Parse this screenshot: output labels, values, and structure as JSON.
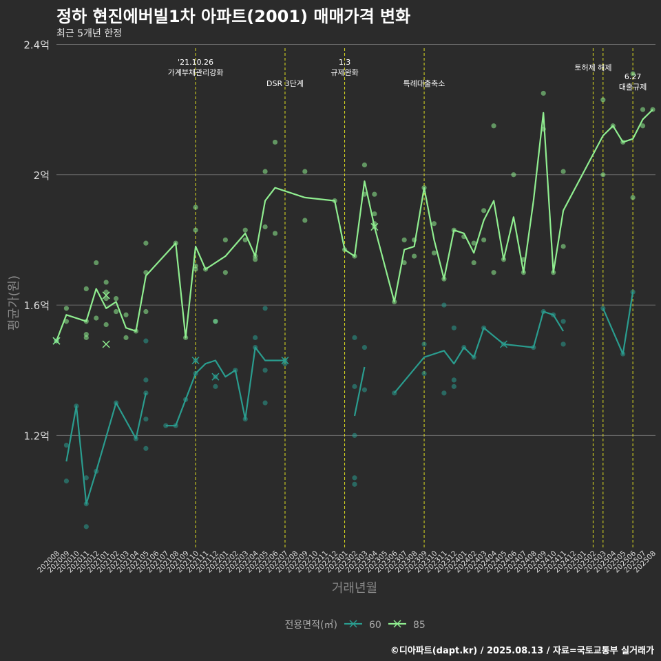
{
  "title": "정하 현진에버빌1차 아파트(2001) 매매가격 변화",
  "subtitle": "최근 5개년 한정",
  "caption": "©디아파트(dapt.kr) / 2025.08.13 / 자료=국토교통부 실거래가",
  "colors": {
    "background": "#2b2b2b",
    "grid": "#6b6b6b",
    "series60": "#2a9d8f",
    "series85": "#90ee90",
    "policy": "#e0e020",
    "text": "#dddddd"
  },
  "chart_data": {
    "type": "line",
    "xlabel": "거래년월",
    "ylabel": "평균가(원)",
    "ylim": [
      0.85,
      2.42
    ],
    "y_ticks": [
      {
        "value": 1.2,
        "label": "1.2억"
      },
      {
        "value": 1.6,
        "label": "1.6억"
      },
      {
        "value": 2.0,
        "label": "2억"
      },
      {
        "value": 2.4,
        "label": "2.4억"
      }
    ],
    "categories": [
      "202008",
      "202009",
      "202010",
      "202011",
      "202012",
      "202101",
      "202102",
      "202103",
      "202104",
      "202105",
      "202106",
      "202107",
      "202108",
      "202109",
      "202110",
      "202111",
      "202112",
      "202201",
      "202202",
      "202203",
      "202204",
      "202205",
      "202206",
      "202207",
      "202208",
      "202209",
      "202210",
      "202211",
      "202212",
      "202301",
      "202302",
      "202303",
      "202304",
      "202305",
      "202306",
      "202307",
      "202308",
      "202309",
      "202310",
      "202311",
      "202312",
      "202401",
      "202402",
      "202403",
      "202404",
      "202405",
      "202406",
      "202407",
      "202408",
      "202409",
      "202410",
      "202411",
      "202412",
      "202501",
      "202502",
      "202503",
      "202504",
      "202505",
      "202506",
      "202507",
      "202508"
    ],
    "grid": true,
    "legend": {
      "title": "전용면적(㎡)",
      "position": "bottom",
      "entries": [
        "60",
        "85"
      ]
    },
    "policy_lines": [
      {
        "x": "202110",
        "label": "'21.10.26\n가계부채관리강화",
        "row": 0
      },
      {
        "x": "202207",
        "label": "DSR 3단계",
        "row": 1
      },
      {
        "x": "202301",
        "label": "1.3\n규제완화",
        "row": 0
      },
      {
        "x": "202309",
        "label": "특례대출축소",
        "row": 1
      },
      {
        "x": "202502",
        "label": "토허제 해제",
        "row": 0
      },
      {
        "x": "202503",
        "label": "",
        "row": 0
      },
      {
        "x": "202506",
        "label": "6.27\n대출규제",
        "row": 2
      }
    ],
    "series": [
      {
        "name": "60",
        "line": [
          [
            [
              "202009",
              1.12
            ],
            [
              "202010",
              1.29
            ],
            [
              "202011",
              0.99
            ],
            [
              "202012",
              1.09
            ],
            [
              "202102",
              1.3
            ],
            [
              "202104",
              1.19
            ],
            [
              "202105",
              1.33
            ]
          ],
          [
            [
              "202107",
              1.23
            ],
            [
              "202108",
              1.23
            ],
            [
              "202109",
              1.31
            ],
            [
              "202110",
              1.39
            ],
            [
              "202111",
              1.42
            ],
            [
              "202112",
              1.43
            ],
            [
              "202201",
              1.38
            ],
            [
              "202202",
              1.4
            ],
            [
              "202203",
              1.25
            ],
            [
              "202204",
              1.47
            ],
            [
              "202205",
              1.43
            ],
            [
              "202207",
              1.43
            ]
          ],
          [
            [
              "202302",
              1.26
            ],
            [
              "202303",
              1.41
            ]
          ],
          [
            [
              "202306",
              1.33
            ],
            [
              "202309",
              1.44
            ],
            [
              "202311",
              1.46
            ],
            [
              "202312",
              1.42
            ],
            [
              "202401",
              1.47
            ],
            [
              "202402",
              1.44
            ],
            [
              "202403",
              1.53
            ],
            [
              "202405",
              1.48
            ],
            [
              "202408",
              1.47
            ],
            [
              "202409",
              1.58
            ],
            [
              "202410",
              1.57
            ],
            [
              "202411",
              1.52
            ]
          ],
          [
            [
              "202503",
              1.59
            ],
            [
              "202505",
              1.45
            ],
            [
              "202506",
              1.64
            ]
          ]
        ],
        "points": [
          [
            "202008",
            1.49
          ],
          [
            "202009",
            1.06
          ],
          [
            "202009",
            1.17
          ],
          [
            "202010",
            1.29
          ],
          [
            "202011",
            1.07
          ],
          [
            "202011",
            0.99
          ],
          [
            "202011",
            0.92
          ],
          [
            "202012",
            1.09
          ],
          [
            "202102",
            1.3
          ],
          [
            "202104",
            1.19
          ],
          [
            "202105",
            1.49
          ],
          [
            "202105",
            1.37
          ],
          [
            "202105",
            1.33
          ],
          [
            "202105",
            1.25
          ],
          [
            "202105",
            1.16
          ],
          [
            "202107",
            1.23
          ],
          [
            "202108",
            1.23
          ],
          [
            "202109",
            1.31
          ],
          [
            "202110",
            1.39
          ],
          [
            "202110",
            1.43
          ],
          [
            "202112",
            1.55
          ],
          [
            "202112",
            1.38
          ],
          [
            "202112",
            1.35
          ],
          [
            "202202",
            1.4
          ],
          [
            "202203",
            1.25
          ],
          [
            "202204",
            1.47
          ],
          [
            "202204",
            1.5
          ],
          [
            "202205",
            1.4
          ],
          [
            "202205",
            1.59
          ],
          [
            "202205",
            1.3
          ],
          [
            "202207",
            1.43
          ],
          [
            "202207",
            1.42
          ],
          [
            "202302",
            1.35
          ],
          [
            "202302",
            1.2
          ],
          [
            "202302",
            1.5
          ],
          [
            "202302",
            1.07
          ],
          [
            "202302",
            1.05
          ],
          [
            "202303",
            1.34
          ],
          [
            "202303",
            1.47
          ],
          [
            "202306",
            1.33
          ],
          [
            "202309",
            1.48
          ],
          [
            "202309",
            1.39
          ],
          [
            "202311",
            1.33
          ],
          [
            "202311",
            1.6
          ],
          [
            "202312",
            1.37
          ],
          [
            "202312",
            1.35
          ],
          [
            "202312",
            1.53
          ],
          [
            "202401",
            1.47
          ],
          [
            "202402",
            1.44
          ],
          [
            "202403",
            1.53
          ],
          [
            "202405",
            1.48
          ],
          [
            "202408",
            1.47
          ],
          [
            "202409",
            1.58
          ],
          [
            "202410",
            1.57
          ],
          [
            "202411",
            1.55
          ],
          [
            "202411",
            1.48
          ],
          [
            "202503",
            1.59
          ],
          [
            "202505",
            1.45
          ],
          [
            "202506",
            1.64
          ]
        ],
        "crosses": [
          [
            "202008",
            1.49
          ],
          [
            "202110",
            1.43
          ],
          [
            "202112",
            1.38
          ],
          [
            "202207",
            1.43
          ],
          [
            "202405",
            1.48
          ]
        ]
      },
      {
        "name": "85",
        "line": [
          [
            [
              "202008",
              1.49
            ],
            [
              "202009",
              1.57
            ],
            [
              "202011",
              1.55
            ],
            [
              "202012",
              1.65
            ],
            [
              "202101",
              1.59
            ],
            [
              "202102",
              1.61
            ],
            [
              "202103",
              1.53
            ],
            [
              "202104",
              1.52
            ],
            [
              "202105",
              1.69
            ],
            [
              "202108",
              1.79
            ],
            [
              "202109",
              1.5
            ],
            [
              "202110",
              1.78
            ],
            [
              "202111",
              1.71
            ],
            [
              "202201",
              1.75
            ],
            [
              "202203",
              1.82
            ],
            [
              "202204",
              1.75
            ],
            [
              "202205",
              1.92
            ],
            [
              "202206",
              1.96
            ],
            [
              "202209",
              1.93
            ],
            [
              "202212",
              1.92
            ],
            [
              "202301",
              1.77
            ],
            [
              "202302",
              1.75
            ],
            [
              "202303",
              1.98
            ],
            [
              "202304",
              1.84
            ],
            [
              "202306",
              1.61
            ],
            [
              "202307",
              1.77
            ],
            [
              "202308",
              1.78
            ],
            [
              "202309",
              1.96
            ],
            [
              "202310",
              1.8
            ],
            [
              "202311",
              1.68
            ],
            [
              "202312",
              1.83
            ],
            [
              "202401",
              1.82
            ],
            [
              "202402",
              1.76
            ],
            [
              "202403",
              1.86
            ],
            [
              "202404",
              1.92
            ],
            [
              "202405",
              1.74
            ],
            [
              "202406",
              1.87
            ],
            [
              "202407",
              1.7
            ],
            [
              "202408",
              1.92
            ],
            [
              "202409",
              2.19
            ],
            [
              "202410",
              1.7
            ],
            [
              "202411",
              1.89
            ],
            [
              "202503",
              2.12
            ],
            [
              "202504",
              2.15
            ],
            [
              "202505",
              2.1
            ],
            [
              "202506",
              2.11
            ],
            [
              "202507",
              2.17
            ],
            [
              "202508",
              2.2
            ]
          ]
        ],
        "points": [
          [
            "202008",
            1.49
          ],
          [
            "202009",
            1.55
          ],
          [
            "202009",
            1.59
          ],
          [
            "202011",
            1.65
          ],
          [
            "202011",
            1.55
          ],
          [
            "202011",
            1.51
          ],
          [
            "202011",
            1.5
          ],
          [
            "202012",
            1.73
          ],
          [
            "202012",
            1.56
          ],
          [
            "202101",
            1.67
          ],
          [
            "202101",
            1.64
          ],
          [
            "202101",
            1.62
          ],
          [
            "202101",
            1.54
          ],
          [
            "202102",
            1.62
          ],
          [
            "202102",
            1.58
          ],
          [
            "202103",
            1.5
          ],
          [
            "202103",
            1.57
          ],
          [
            "202104",
            1.52
          ],
          [
            "202105",
            1.79
          ],
          [
            "202105",
            1.7
          ],
          [
            "202105",
            1.58
          ],
          [
            "202108",
            1.79
          ],
          [
            "202109",
            1.5
          ],
          [
            "202110",
            1.9
          ],
          [
            "202110",
            1.83
          ],
          [
            "202110",
            1.72
          ],
          [
            "202110",
            1.71
          ],
          [
            "202111",
            1.71
          ],
          [
            "202112",
            1.55
          ],
          [
            "202201",
            1.8
          ],
          [
            "202201",
            1.7
          ],
          [
            "202203",
            1.83
          ],
          [
            "202203",
            1.8
          ],
          [
            "202204",
            1.75
          ],
          [
            "202204",
            1.74
          ],
          [
            "202205",
            2.01
          ],
          [
            "202205",
            1.84
          ],
          [
            "202206",
            2.1
          ],
          [
            "202206",
            1.82
          ],
          [
            "202209",
            2.01
          ],
          [
            "202209",
            1.86
          ],
          [
            "202212",
            1.92
          ],
          [
            "202301",
            1.77
          ],
          [
            "202302",
            1.75
          ],
          [
            "202303",
            2.03
          ],
          [
            "202303",
            1.94
          ],
          [
            "202304",
            1.94
          ],
          [
            "202304",
            1.88
          ],
          [
            "202304",
            1.85
          ],
          [
            "202304",
            1.84
          ],
          [
            "202306",
            1.61
          ],
          [
            "202307",
            1.8
          ],
          [
            "202307",
            1.73
          ],
          [
            "202308",
            1.8
          ],
          [
            "202308",
            1.75
          ],
          [
            "202309",
            1.96
          ],
          [
            "202310",
            1.85
          ],
          [
            "202310",
            1.76
          ],
          [
            "202311",
            1.68
          ],
          [
            "202312",
            1.83
          ],
          [
            "202401",
            1.81
          ],
          [
            "202402",
            1.79
          ],
          [
            "202402",
            1.73
          ],
          [
            "202403",
            1.89
          ],
          [
            "202403",
            1.8
          ],
          [
            "202404",
            2.15
          ],
          [
            "202404",
            1.7
          ],
          [
            "202405",
            1.74
          ],
          [
            "202406",
            2.0
          ],
          [
            "202407",
            1.74
          ],
          [
            "202407",
            1.7
          ],
          [
            "202409",
            2.25
          ],
          [
            "202409",
            2.14
          ],
          [
            "202410",
            1.7
          ],
          [
            "202411",
            2.01
          ],
          [
            "202411",
            1.78
          ],
          [
            "202503",
            2.23
          ],
          [
            "202503",
            2.0
          ],
          [
            "202504",
            2.15
          ],
          [
            "202505",
            2.1
          ],
          [
            "202506",
            2.31
          ],
          [
            "202506",
            1.93
          ],
          [
            "202507",
            2.2
          ],
          [
            "202507",
            2.15
          ],
          [
            "202508",
            2.2
          ]
        ],
        "crosses": [
          [
            "202008",
            1.49
          ],
          [
            "202101",
            1.63
          ],
          [
            "202101",
            1.48
          ],
          [
            "202304",
            1.84
          ]
        ]
      }
    ]
  }
}
